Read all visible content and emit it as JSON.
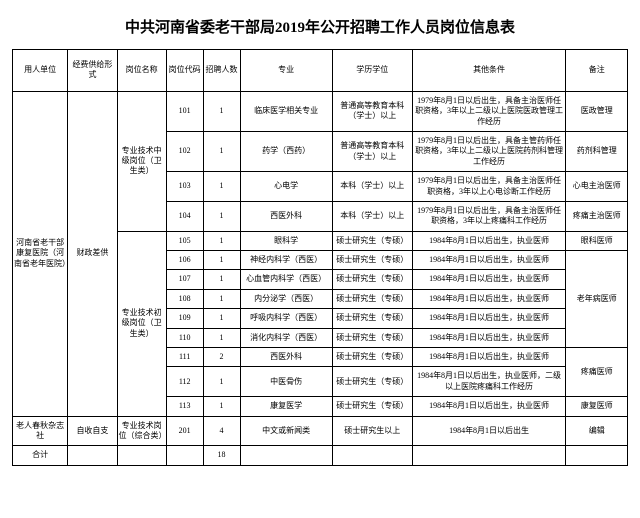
{
  "title": "中共河南省委老干部局2019年公开招聘工作人员岗位信息表",
  "headers": {
    "h1": "用人单位",
    "h2": "经费供给形式",
    "h3": "岗位名称",
    "h4": "岗位代码",
    "h5": "招聘人数",
    "h6": "专业",
    "h7": "学历学位",
    "h8": "其他条件",
    "h9": "备注"
  },
  "unit1": "河南省老干部康复医院（河南省老年医院）",
  "fund1": "财政差供",
  "post1": "专业技术中级岗位（卫生类）",
  "post2": "专业技术初级岗位（卫生类）",
  "r101": {
    "code": "101",
    "num": "1",
    "major": "临床医学相关专业",
    "edu": "普通高等教育本科（学士）以上",
    "cond": "1979年8月1日以后出生，具备主治医师任职资格，3年以上二级以上医院医政管理工作经历",
    "note": "医政管理"
  },
  "r102": {
    "code": "102",
    "num": "1",
    "major": "药学（西药）",
    "edu": "普通高等教育本科（学士）以上",
    "cond": "1979年8月1日以后出生，具备主管药师任职资格，3年以上二级以上医院药剂科管理工作经历",
    "note": "药剂科管理"
  },
  "r103": {
    "code": "103",
    "num": "1",
    "major": "心电学",
    "edu": "本科（学士）以上",
    "cond": "1979年8月1日以后出生，具备主治医师任职资格，3年以上心电诊断工作经历",
    "note": "心电主治医师"
  },
  "r104": {
    "code": "104",
    "num": "1",
    "major": "西医外科",
    "edu": "本科（学士）以上",
    "cond": "1979年8月1日以后出生，具备主治医师任职资格，3年以上疼痛科工作经历",
    "note": "疼痛主治医师"
  },
  "r105": {
    "code": "105",
    "num": "1",
    "major": "眼科学",
    "edu": "硕士研究生（专硕）",
    "cond": "1984年8月1日以后出生，执业医师",
    "note": "眼科医师"
  },
  "r106": {
    "code": "106",
    "num": "1",
    "major": "神经内科学（西医）",
    "edu": "硕士研究生（专硕）",
    "cond": "1984年8月1日以后出生，执业医师"
  },
  "r107": {
    "code": "107",
    "num": "1",
    "major": "心血管内科学（西医）",
    "edu": "硕士研究生（专硕）",
    "cond": "1984年8月1日以后出生，执业医师"
  },
  "r108": {
    "code": "108",
    "num": "1",
    "major": "内分泌学（西医）",
    "edu": "硕士研究生（专硕）",
    "cond": "1984年8月1日以后出生，执业医师"
  },
  "r109": {
    "code": "109",
    "num": "1",
    "major": "呼吸内科学（西医）",
    "edu": "硕士研究生（专硕）",
    "cond": "1984年8月1日以后出生，执业医师"
  },
  "r110": {
    "code": "110",
    "num": "1",
    "major": "消化内科学（西医）",
    "edu": "硕士研究生（专硕）",
    "cond": "1984年8月1日以后出生，执业医师"
  },
  "note_laonian": "老年病医师",
  "r111": {
    "code": "111",
    "num": "2",
    "major": "西医外科",
    "edu": "硕士研究生（专硕）",
    "cond": "1984年8月1日以后出生，执业医师"
  },
  "r112": {
    "code": "112",
    "num": "1",
    "major": "中医骨伤",
    "edu": "硕士研究生（专硕）",
    "cond": "1984年8月1日以后出生，执业医师，二级以上医院疼痛科工作经历"
  },
  "note_tengtong": "疼痛医师",
  "r113": {
    "code": "113",
    "num": "1",
    "major": "康复医学",
    "edu": "硕士研究生（专硕）",
    "cond": "1984年8月1日以后出生，执业医师",
    "note": "康复医师"
  },
  "unit2": "老人春秋杂志社",
  "fund2": "自收自支",
  "post3": "专业技术岗位（综合类）",
  "r201": {
    "code": "201",
    "num": "4",
    "major": "中文或新闻类",
    "edu": "硕士研究生以上",
    "cond": "1984年8月1日以后出生",
    "note": "编辑"
  },
  "total_label": "合计",
  "total_num": "18"
}
